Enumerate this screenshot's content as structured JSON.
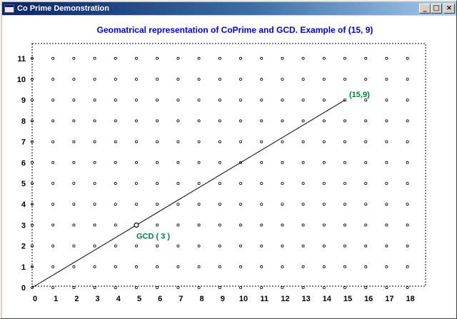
{
  "window": {
    "title": "Co Prime Demonstration",
    "minimize_label": "_",
    "maximize_label": "□",
    "close_label": "×"
  },
  "colors": {
    "heading": "#0000cc",
    "annotation": "#008040",
    "grid_point": "#000000",
    "line": "#000000"
  },
  "chart_data": {
    "type": "scatter",
    "title": "Geomatrical representation of CoPrime and GCD. Example of (15, 9)",
    "x_ticks": [
      "0",
      "1",
      "2",
      "3",
      "4",
      "5",
      "6",
      "7",
      "8",
      "9",
      "10",
      "11",
      "12",
      "13",
      "14",
      "15",
      "16",
      "17",
      "18"
    ],
    "y_ticks": [
      "0",
      "1",
      "2",
      "3",
      "4",
      "5",
      "6",
      "7",
      "8",
      "9",
      "10",
      "11"
    ],
    "xlim": [
      0,
      18
    ],
    "ylim": [
      0,
      11
    ],
    "grid_points": "integer lattice 0..18 x 0..11",
    "segment": {
      "from": [
        0,
        0
      ],
      "to": [
        15,
        9
      ]
    },
    "endpoint_label": "(15,9)",
    "gcd_point": [
      5,
      3
    ],
    "gcd_label": "GCD ( 3 )"
  }
}
